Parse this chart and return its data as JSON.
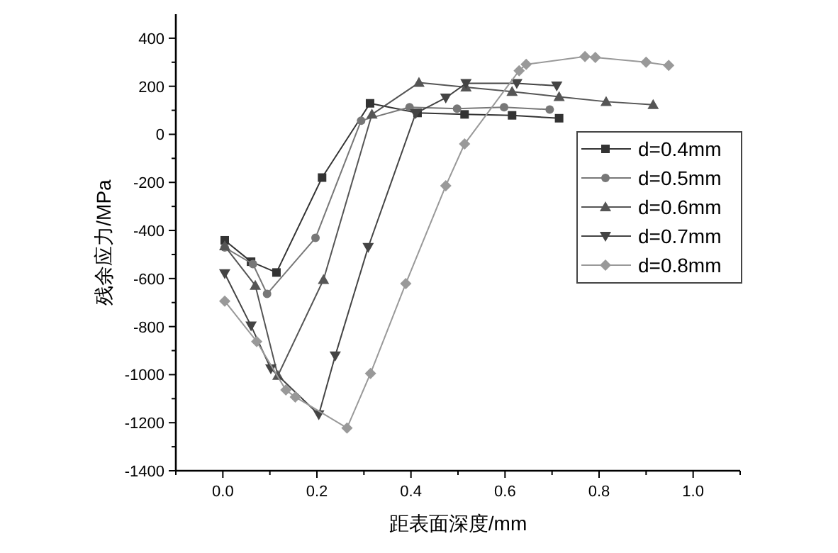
{
  "chart_data": {
    "type": "line",
    "xlabel": "距表面深度/mm",
    "ylabel": "残余应力/MPa",
    "xlim": [
      -0.1,
      1.1
    ],
    "ylim": [
      -1400,
      500
    ],
    "xticks": [
      {
        "value": -0.1,
        "label": null
      },
      {
        "value": 0,
        "label": "0.0"
      },
      {
        "value": 0.1,
        "label": null
      },
      {
        "value": 0.2,
        "label": "0.2"
      },
      {
        "value": 0.3,
        "label": null
      },
      {
        "value": 0.4,
        "label": "0.4"
      },
      {
        "value": 0.5,
        "label": null
      },
      {
        "value": 0.6,
        "label": "0.6"
      },
      {
        "value": 0.7,
        "label": null
      },
      {
        "value": 0.8,
        "label": "0.8"
      },
      {
        "value": 0.9,
        "label": null
      },
      {
        "value": 1.0,
        "label": "1.0"
      },
      {
        "value": 1.1,
        "label": null
      }
    ],
    "yticks": [
      -1400,
      {
        "value": -1300,
        "label": null
      },
      -1200,
      {
        "value": -1100,
        "label": null
      },
      -1000,
      {
        "value": -900,
        "label": null
      },
      -800,
      {
        "value": -700,
        "label": null
      },
      -600,
      {
        "value": -500,
        "label": null
      },
      -400,
      {
        "value": -300,
        "label": null
      },
      -200,
      {
        "value": -100,
        "label": null
      },
      0,
      {
        "value": 100,
        "label": null
      },
      200,
      {
        "value": 300,
        "label": null
      },
      400
    ],
    "grid": false,
    "legend": "right",
    "line_style": "solid",
    "series": [
      {
        "name": "d=0.4mm",
        "color": "#333333",
        "marker": "square",
        "x": [
          0.004,
          0.06,
          0.114,
          0.211,
          0.313,
          0.414,
          0.514,
          0.615,
          0.715
        ],
        "values": [
          -441,
          -530,
          -575,
          -180,
          129,
          89,
          83,
          79,
          67
        ]
      },
      {
        "name": "d=0.5mm",
        "color": "#777777",
        "marker": "circle",
        "x": [
          0.004,
          0.064,
          0.094,
          0.197,
          0.294,
          0.397,
          0.498,
          0.598,
          0.695
        ],
        "values": [
          -471,
          -540,
          -664,
          -431,
          57,
          113,
          107,
          113,
          103
        ]
      },
      {
        "name": "d=0.6mm",
        "color": "#555555",
        "marker": "triangle",
        "x": [
          0.004,
          0.069,
          0.117,
          0.214,
          0.317,
          0.417,
          0.517,
          0.615,
          0.715,
          0.815,
          0.915
        ],
        "values": [
          -465,
          -629,
          -1004,
          -605,
          83,
          215,
          196,
          178,
          156,
          136,
          123
        ]
      },
      {
        "name": "d=0.7mm",
        "color": "#444444",
        "marker": "triangle-down",
        "x": [
          0.004,
          0.06,
          0.102,
          0.204,
          0.239,
          0.309,
          0.41,
          0.474,
          0.517,
          0.625,
          0.71
        ],
        "values": [
          -579,
          -797,
          -975,
          -1166,
          -921,
          -470,
          87,
          152,
          212,
          212,
          202
        ]
      },
      {
        "name": "d=0.8mm",
        "color": "#999999",
        "marker": "diamond",
        "x": [
          0.004,
          0.072,
          0.134,
          0.154,
          0.264,
          0.314,
          0.389,
          0.474,
          0.514,
          0.63,
          0.645,
          0.77,
          0.792,
          0.9,
          0.948
        ],
        "values": [
          -694,
          -862,
          -1064,
          -1093,
          -1222,
          -995,
          -621,
          -214,
          -40,
          265,
          291,
          324,
          320,
          300,
          287
        ]
      }
    ]
  }
}
